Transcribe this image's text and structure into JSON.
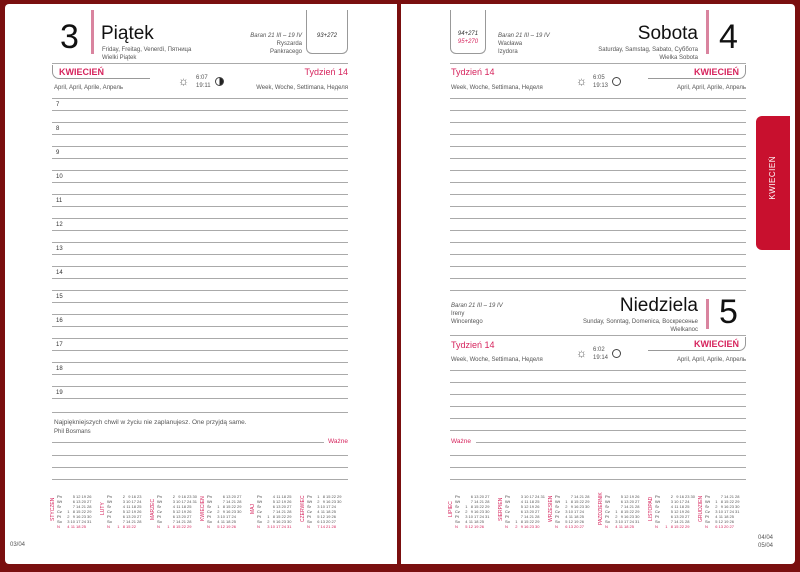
{
  "left": {
    "day_number": "3",
    "day_name": "Piątek",
    "day_translations": "Friday, Freitag, Venerdì, Пятница",
    "holiday": "Wielki Piątek",
    "zodiac": "Baran 21 III – 19 IV",
    "name_days": [
      "Ryszarda",
      "Pankracego"
    ],
    "day_count": "93+272",
    "month": "KWIECIEŃ",
    "month_translations": "April, April, Aprile, Апрель",
    "sunrise": "6:07",
    "sunset": "19:11",
    "week": "Tydzień 14",
    "week_translations": "Week, Woche, Settimana, Неделя",
    "hours": [
      "7",
      "8",
      "9",
      "10",
      "11",
      "12",
      "13",
      "14",
      "15",
      "16",
      "17",
      "18",
      "19"
    ],
    "quote": "Najpiękniejszych chwil w życiu nie zaplanujesz. One przyjdą same.",
    "quote_author": "Phil Bosmans",
    "important": "Ważne",
    "page_number": "03/04",
    "calendar_months": [
      "STYCZEŃ",
      "LUTY",
      "MARZEC",
      "KWIECIEŃ",
      "MAJ",
      "CZERWIEC"
    ]
  },
  "right": {
    "day_number": "4",
    "day_name": "Sobota",
    "day_translations": "Saturday, Samstag, Sabato, Суббота",
    "holiday": "Wielka Sobota",
    "zodiac": "Baran 21 III – 19 IV",
    "name_days": [
      "Wacława",
      "Izydora"
    ],
    "day_count": "94+271",
    "day_count_2": "95+270",
    "week": "Tydzień 14",
    "week_translations": "Week, Woche, Settimana, Неделя",
    "sunrise": "6:05",
    "sunset": "19:13",
    "month": "KWIECIEŃ",
    "month_translations": "April, April, Aprile, Апрель",
    "sunday": {
      "zodiac": "Baran 21 III – 19 IV",
      "name_days": [
        "Ireny",
        "Wincentego"
      ],
      "day_name": "Niedziela",
      "day_number": "5",
      "day_translations": "Sunday, Sonntag, Domenica, Воскресенье",
      "holiday": "Wielkanoc",
      "week": "Tydzień 14",
      "week_translations": "Week, Woche, Settimana, Неделя",
      "sunrise": "6:02",
      "sunset": "19:14",
      "month": "KWIECIEŃ",
      "month_translations": "April, April, Aprile, Апрель"
    },
    "important": "Ważne",
    "page_number_1": "04/04",
    "page_number_2": "05/04",
    "calendar_months": [
      "LIPIEC",
      "SIERPIEŃ",
      "WRZESIEŃ",
      "PAŹDZIERNIK",
      "LISTOPAD",
      "GRUDZIEŃ"
    ]
  },
  "weekdays": [
    "Pn",
    "Wt",
    "Śr",
    "Cz",
    "Pt",
    "So",
    "N"
  ],
  "tab_label": "KWIECIEŃ",
  "colors": {
    "accent": "#d6245d",
    "border": "#7a0f0f",
    "tab": "#c8102e"
  }
}
